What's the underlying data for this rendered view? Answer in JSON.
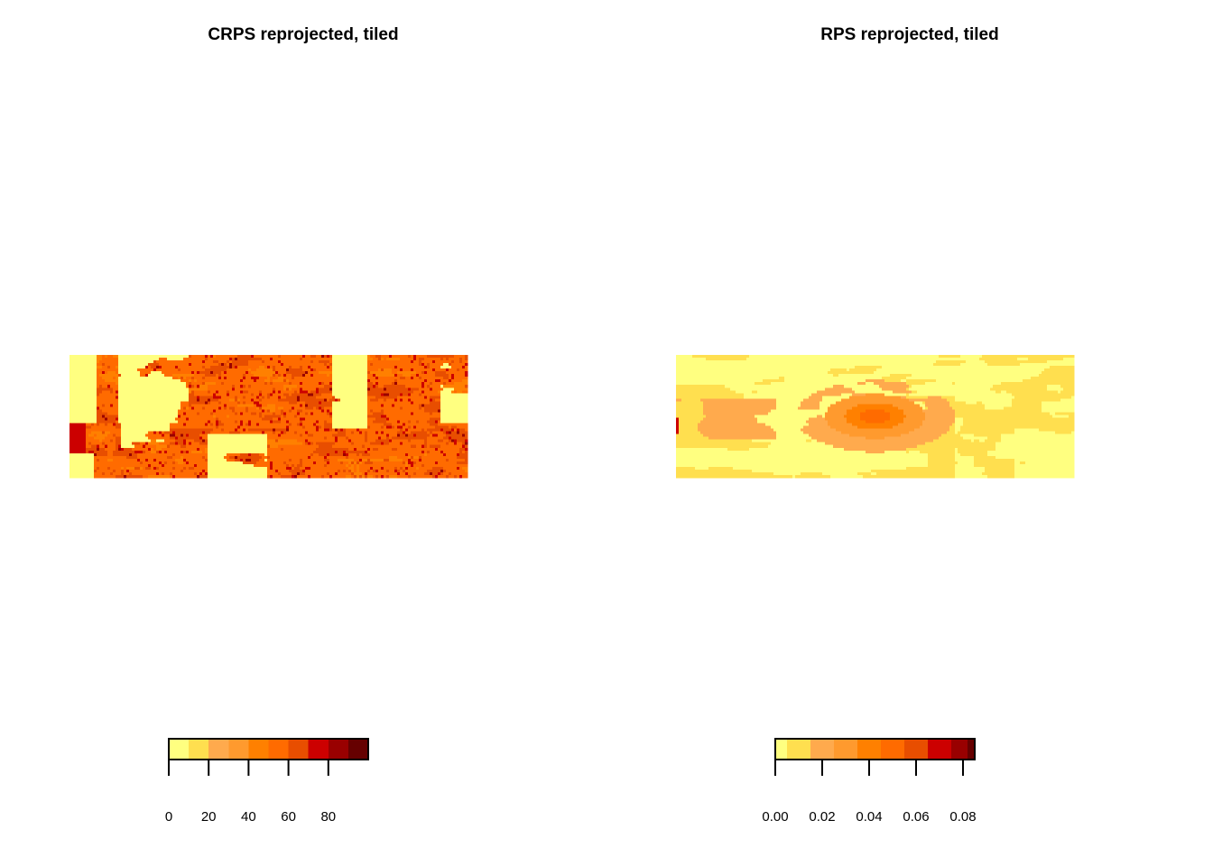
{
  "palette": [
    "#FFFF80",
    "#FFDF4F",
    "#FFAA4D",
    "#FF9A2E",
    "#FF8000",
    "#FF6B00",
    "#E84E00",
    "#CC0000",
    "#990000",
    "#660000"
  ],
  "chart_data": [
    {
      "type": "heatmap",
      "title": "CRPS reprojected, tiled",
      "xlabel": "",
      "ylabel": "",
      "legend": {
        "placement": "bottom",
        "range": [
          0,
          100
        ],
        "breaks": [
          0,
          10,
          20,
          30,
          40,
          50,
          60,
          70,
          80,
          90,
          100
        ],
        "ticks": [
          0,
          20,
          40,
          60,
          80
        ],
        "tick_labels": [
          "0",
          "20",
          "40",
          "60",
          "80"
        ]
      },
      "pattern": "widespread high values with scattered low (yellow) patches"
    },
    {
      "type": "heatmap",
      "title": "RPS reprojected, tiled",
      "xlabel": "",
      "ylabel": "",
      "legend": {
        "placement": "bottom",
        "range": [
          0,
          0.085
        ],
        "breaks": [
          0,
          0.005,
          0.015,
          0.025,
          0.035,
          0.045,
          0.055,
          0.065,
          0.075,
          0.082,
          0.085
        ],
        "ticks": [
          0,
          0.02,
          0.04,
          0.06,
          0.08
        ],
        "tick_labels": [
          "0.00",
          "0.02",
          "0.04",
          "0.06",
          "0.08"
        ]
      },
      "pattern": "mostly low values with a central hotspot"
    }
  ]
}
